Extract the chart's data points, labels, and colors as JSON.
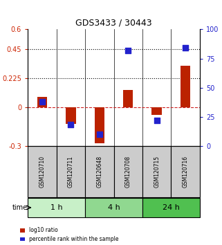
{
  "title": "GDS3433 / 30443",
  "samples": [
    "GSM120710",
    "GSM120711",
    "GSM120648",
    "GSM120708",
    "GSM120715",
    "GSM120716"
  ],
  "log10_ratio": [
    0.08,
    -0.13,
    -0.28,
    0.13,
    -0.06,
    0.32
  ],
  "percentile_rank": [
    0.38,
    0.18,
    0.1,
    0.82,
    0.22,
    0.84
  ],
  "time_groups": [
    {
      "label": "1 h",
      "cols": [
        0,
        1
      ],
      "color": "#c8f0c8"
    },
    {
      "label": "4 h",
      "cols": [
        2,
        3
      ],
      "color": "#90d890"
    },
    {
      "label": "24 h",
      "cols": [
        4,
        5
      ],
      "color": "#50c050"
    }
  ],
  "ylim_left": [
    -0.3,
    0.6
  ],
  "ylim_right": [
    0,
    100
  ],
  "yticks_left": [
    -0.3,
    0,
    0.225,
    0.45,
    0.6
  ],
  "yticks_right": [
    0,
    25,
    50,
    75,
    100
  ],
  "hlines_dotted": [
    0.45,
    0.225
  ],
  "hline_dashed": 0,
  "bar_color": "#bb2200",
  "dot_color": "#2222cc",
  "bar_width": 0.35,
  "dot_size": 30,
  "legend_items": [
    {
      "label": "log10 ratio",
      "color": "#bb2200"
    },
    {
      "label": "percentile rank within the sample",
      "color": "#2222cc"
    }
  ],
  "xlabel_time": "time",
  "sample_box_color": "#cccccc",
  "sample_box_border": "#000000"
}
